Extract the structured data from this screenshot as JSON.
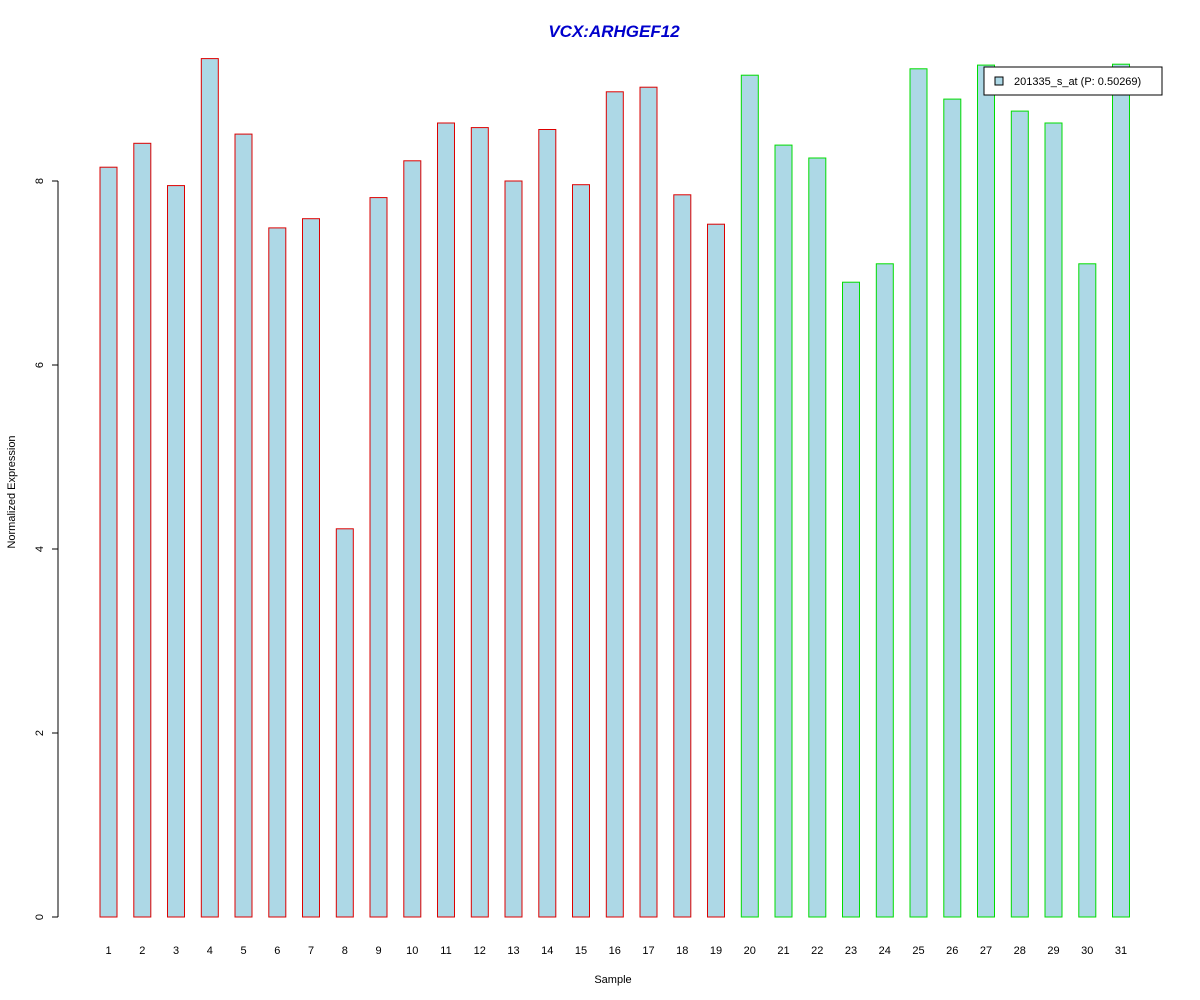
{
  "chart_data": {
    "type": "bar",
    "title": "VCX:ARHGEF12",
    "xlabel": "Sample",
    "ylabel": "Normalized Expression",
    "categories": [
      "1",
      "2",
      "3",
      "4",
      "5",
      "6",
      "7",
      "8",
      "9",
      "10",
      "11",
      "12",
      "13",
      "14",
      "15",
      "16",
      "17",
      "18",
      "19",
      "20",
      "21",
      "22",
      "23",
      "24",
      "25",
      "26",
      "27",
      "28",
      "29",
      "30",
      "31"
    ],
    "series": [
      {
        "name": "201335_s_at (P: 0.50269)",
        "values": [
          8.15,
          8.41,
          7.95,
          9.33,
          8.51,
          7.49,
          7.59,
          4.22,
          7.82,
          8.22,
          8.63,
          8.58,
          8.0,
          8.56,
          7.96,
          8.97,
          9.02,
          7.85,
          7.53,
          9.15,
          8.39,
          8.25,
          6.9,
          7.1,
          9.22,
          8.89,
          9.26,
          8.76,
          8.63,
          7.1,
          9.27
        ]
      }
    ],
    "group_border_colors": [
      "#dd0000",
      "#dd0000",
      "#dd0000",
      "#dd0000",
      "#dd0000",
      "#dd0000",
      "#dd0000",
      "#dd0000",
      "#dd0000",
      "#dd0000",
      "#dd0000",
      "#dd0000",
      "#dd0000",
      "#dd0000",
      "#dd0000",
      "#dd0000",
      "#dd0000",
      "#dd0000",
      "#dd0000",
      "#00dd00",
      "#00dd00",
      "#00dd00",
      "#00dd00",
      "#00dd00",
      "#00dd00",
      "#00dd00",
      "#00dd00",
      "#00dd00",
      "#00dd00",
      "#00dd00",
      "#00dd00"
    ],
    "bar_fill": "#add8e6",
    "title_color": "#0000cc",
    "yticks": [
      0,
      2,
      4,
      6,
      8
    ],
    "ylim": [
      0,
      9.4
    ],
    "grid": false,
    "legend_position": "top-right"
  }
}
